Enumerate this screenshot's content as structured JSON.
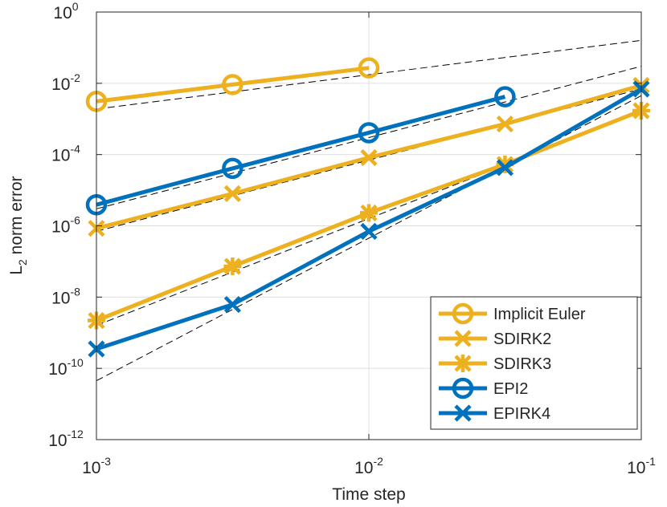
{
  "chart_data": {
    "type": "line",
    "xscale": "log",
    "yscale": "log",
    "xlim": [
      0.001,
      0.1
    ],
    "ylim": [
      1e-12,
      1
    ],
    "xlabel": "Time step",
    "ylabel_main": "L",
    "ylabel_sub": "2",
    "ylabel_rest": " norm error",
    "x_ticks": [
      {
        "value": 0.001,
        "base": "10",
        "exp": "-3"
      },
      {
        "value": 0.01,
        "base": "10",
        "exp": "-2"
      },
      {
        "value": 0.1,
        "base": "10",
        "exp": "-1"
      }
    ],
    "y_ticks": [
      {
        "value": 1e-12,
        "base": "10",
        "exp": "-12"
      },
      {
        "value": 1e-10,
        "base": "10",
        "exp": "-10"
      },
      {
        "value": 1e-08,
        "base": "10",
        "exp": "-8"
      },
      {
        "value": 1e-06,
        "base": "10",
        "exp": "-6"
      },
      {
        "value": 0.0001,
        "base": "10",
        "exp": "-4"
      },
      {
        "value": 0.01,
        "base": "10",
        "exp": "-2"
      },
      {
        "value": 1,
        "base": "10",
        "exp": "0"
      }
    ],
    "series": [
      {
        "name": "Implicit Euler",
        "color": "#EDB120",
        "marker": "circle",
        "x": [
          0.001,
          0.00316,
          0.01
        ],
        "y": [
          0.0031,
          0.0092,
          0.027
        ]
      },
      {
        "name": "SDIRK2",
        "color": "#EDB120",
        "marker": "x",
        "x": [
          0.001,
          0.00316,
          0.01,
          0.0316,
          0.1
        ],
        "y": [
          8.5e-07,
          8e-06,
          8.2e-05,
          0.00072,
          0.0087
        ]
      },
      {
        "name": "SDIRK3",
        "color": "#EDB120",
        "marker": "asterisk",
        "x": [
          0.001,
          0.00316,
          0.01,
          0.0316,
          0.1
        ],
        "y": [
          2.2e-09,
          7.3e-08,
          2.3e-06,
          5.3e-05,
          0.0017
        ]
      },
      {
        "name": "EPI2",
        "color": "#0072BD",
        "marker": "circle",
        "x": [
          0.001,
          0.00316,
          0.01,
          0.0316
        ],
        "y": [
          3.9e-06,
          4.1e-05,
          0.00041,
          0.0042
        ]
      },
      {
        "name": "EPIRK4",
        "color": "#0072BD",
        "marker": "x",
        "x": [
          0.001,
          0.00316,
          0.01,
          0.0316,
          0.1
        ],
        "y": [
          3.5e-10,
          6.2e-09,
          7e-07,
          4.3e-05,
          0.0069
        ]
      }
    ],
    "reference_lines": [
      {
        "x": [
          0.001,
          0.1
        ],
        "y": [
          0.0019,
          0.16
        ]
      },
      {
        "x": [
          0.001,
          0.1
        ],
        "y": [
          3e-06,
          0.03
        ]
      },
      {
        "x": [
          0.001,
          0.1
        ],
        "y": [
          7e-07,
          0.007
        ]
      },
      {
        "x": [
          0.001,
          0.1
        ],
        "y": [
          1.6e-09,
          0.0016
        ]
      },
      {
        "x": [
          0.001,
          0.1
        ],
        "y": [
          4.5e-11,
          0.0045
        ]
      }
    ],
    "legend_position": "bottom-right"
  }
}
